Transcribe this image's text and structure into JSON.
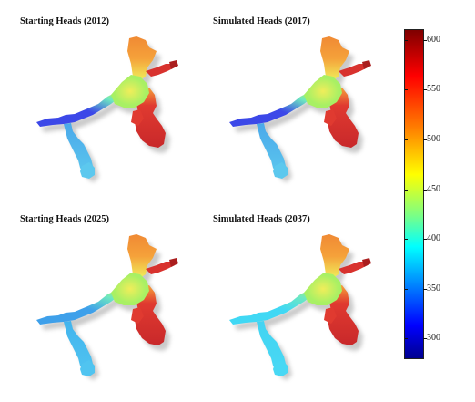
{
  "panels": [
    {
      "title": "Starting Heads (2012)",
      "west_color": "#3c48e8",
      "lower_branch_color": "#4aa8ea",
      "tip_color": "#5cc8ee"
    },
    {
      "title": "Simulated Heads (2017)",
      "west_color": "#3c48e8",
      "lower_branch_color": "#4aa8ea",
      "tip_color": "#5cc8ee"
    },
    {
      "title": "Starting Heads (2025)",
      "west_color": "#3ea0ea",
      "lower_branch_color": "#42b4ee",
      "tip_color": "#50c4f0"
    },
    {
      "title": "Simulated Heads (2037)",
      "west_color": "#40d8f4",
      "lower_branch_color": "#42d4f2",
      "tip_color": "#48d8f4"
    }
  ],
  "map_colors": {
    "junction": "#a8f064",
    "center": "#f0ee5a",
    "north": "#f5a13a",
    "north_tip": "#f08a34",
    "arm": "#d8322e",
    "arm_tip": "#aa1e1e",
    "south_body": "#e03a30",
    "south_bottom": "#c8282a",
    "mid_west": "#6ee8c0"
  },
  "colorbar": {
    "min": 280,
    "max": 610,
    "ticks": [
      "600",
      "550",
      "500",
      "450",
      "400",
      "350",
      "300"
    ],
    "tick_values": [
      600,
      550,
      500,
      450,
      400,
      350,
      300
    ],
    "colormap": "jet"
  }
}
